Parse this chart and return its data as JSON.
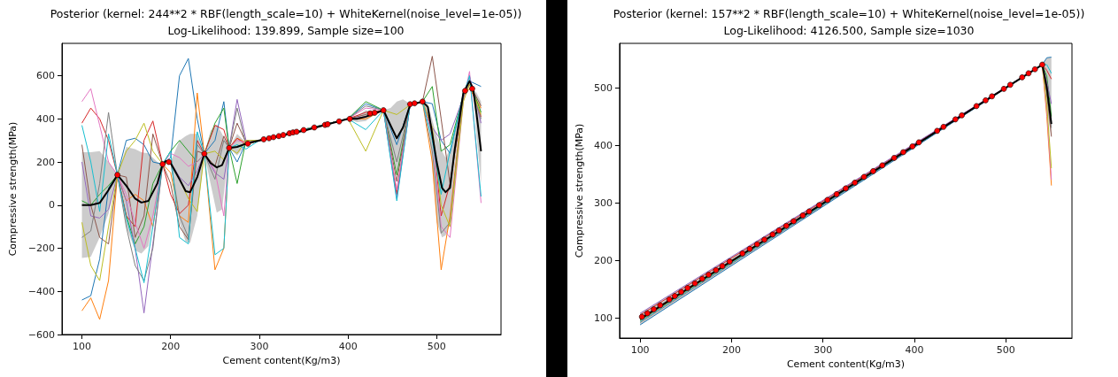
{
  "chart_data": [
    {
      "type": "line",
      "title": "Posterior (kernel: 244**2 * RBF(length_scale=10) + WhiteKernel(noise_level=1e-05))",
      "subtitle": "Log-Likelihood: 139.899, Sample size=100",
      "xlabel": "Cement content(Kg/m3)",
      "ylabel": "Compressive strength(MPa)",
      "xlim": [
        77.5,
        572.5
      ],
      "ylim": [
        -600,
        750
      ],
      "xticks": [
        100,
        200,
        300,
        400,
        500
      ],
      "yticks": [
        -600,
        -400,
        -200,
        0,
        200,
        400,
        600
      ],
      "grid": false,
      "series": [
        {
          "color": "#000000",
          "x": [
            100,
            110,
            120,
            130,
            140,
            150,
            160,
            167,
            175,
            185,
            191,
            195,
            200,
            210,
            217,
            222,
            230,
            238,
            245,
            252,
            258,
            266,
            275,
            285,
            300,
            350,
            400,
            410,
            420,
            430,
            440,
            448,
            455,
            462,
            470,
            477,
            484,
            490,
            500,
            506,
            510,
            515,
            520,
            530,
            537,
            541,
            545,
            550
          ],
          "values": [
            0,
            0,
            10,
            70,
            140,
            90,
            30,
            12,
            20,
            100,
            190,
            205,
            195,
            120,
            65,
            60,
            130,
            238,
            195,
            175,
            185,
            265,
            270,
            285,
            300,
            345,
            400,
            400,
            410,
            425,
            440,
            370,
            310,
            360,
            465,
            472,
            480,
            455,
            200,
            80,
            60,
            80,
            250,
            520,
            575,
            540,
            420,
            250
          ],
          "upper": [
            245,
            245,
            250,
            200,
            140,
            270,
            260,
            245,
            240,
            200,
            190,
            210,
            200,
            300,
            320,
            330,
            330,
            238,
            345,
            375,
            330,
            265,
            330,
            290,
            305,
            345,
            400,
            415,
            440,
            430,
            440,
            450,
            480,
            490,
            470,
            472,
            480,
            470,
            320,
            250,
            220,
            260,
            330,
            520,
            575,
            540,
            520,
            480
          ],
          "lower": [
            -245,
            -240,
            -150,
            -40,
            140,
            -100,
            -210,
            -225,
            -190,
            40,
            190,
            200,
            190,
            -80,
            -170,
            -175,
            -50,
            238,
            100,
            -35,
            -20,
            265,
            230,
            280,
            295,
            345,
            400,
            385,
            390,
            420,
            440,
            270,
            150,
            240,
            460,
            472,
            480,
            420,
            -80,
            -150,
            -140,
            -90,
            160,
            520,
            575,
            540,
            320,
            100
          ]
        },
        {
          "type": "line",
          "color": "#1f77b4",
          "x": [
            100,
            110,
            120,
            130,
            140,
            150,
            160,
            170,
            180,
            191,
            200,
            210,
            220,
            230,
            238,
            250,
            260,
            266,
            275,
            285,
            300,
            400,
            420,
            440,
            455,
            470,
            484,
            495,
            505,
            515,
            530,
            537,
            550
          ],
          "values": [
            -440,
            -420,
            -250,
            80,
            140,
            300,
            310,
            280,
            200,
            190,
            220,
            600,
            680,
            400,
            238,
            300,
            480,
            265,
            200,
            290,
            300,
            400,
            470,
            440,
            280,
            465,
            480,
            470,
            300,
            240,
            520,
            575,
            550
          ]
        },
        {
          "type": "line",
          "color": "#ff7f0e",
          "x": [
            100,
            110,
            120,
            130,
            140,
            150,
            160,
            170,
            180,
            191,
            200,
            210,
            220,
            230,
            238,
            250,
            260,
            266,
            275,
            285,
            300,
            400,
            420,
            440,
            455,
            470,
            484,
            495,
            505,
            515,
            530,
            537,
            550
          ],
          "values": [
            -490,
            -430,
            -530,
            -350,
            140,
            20,
            50,
            20,
            -100,
            190,
            150,
            -50,
            -80,
            520,
            238,
            -300,
            -200,
            265,
            310,
            290,
            300,
            400,
            400,
            440,
            60,
            465,
            480,
            200,
            -300,
            -50,
            510,
            540,
            450
          ]
        },
        {
          "type": "line",
          "color": "#2ca02c",
          "x": [
            100,
            110,
            120,
            130,
            140,
            150,
            160,
            170,
            180,
            191,
            200,
            210,
            220,
            230,
            238,
            250,
            260,
            266,
            275,
            285,
            300,
            400,
            420,
            440,
            455,
            470,
            484,
            495,
            505,
            515,
            530,
            537,
            550
          ],
          "values": [
            20,
            0,
            50,
            90,
            140,
            -50,
            -180,
            -100,
            100,
            190,
            250,
            300,
            250,
            200,
            238,
            380,
            450,
            265,
            100,
            300,
            300,
            400,
            480,
            440,
            140,
            465,
            480,
            550,
            250,
            280,
            510,
            575,
            430
          ]
        },
        {
          "type": "line",
          "color": "#d62728",
          "x": [
            100,
            110,
            120,
            130,
            140,
            150,
            160,
            170,
            180,
            191,
            200,
            210,
            220,
            230,
            238,
            250,
            260,
            266,
            275,
            285,
            300,
            400,
            420,
            440,
            455,
            470,
            484,
            495,
            505,
            515,
            530,
            537,
            550
          ],
          "values": [
            380,
            450,
            400,
            300,
            140,
            -50,
            -100,
            300,
            390,
            190,
            50,
            -40,
            0,
            300,
            238,
            370,
            350,
            265,
            310,
            280,
            300,
            400,
            430,
            440,
            50,
            465,
            480,
            350,
            -50,
            100,
            500,
            560,
            410
          ]
        },
        {
          "type": "line",
          "color": "#9467bd",
          "x": [
            100,
            110,
            120,
            130,
            140,
            150,
            160,
            170,
            180,
            191,
            200,
            210,
            220,
            230,
            238,
            250,
            260,
            266,
            275,
            285,
            300,
            400,
            420,
            440,
            455,
            470,
            484,
            495,
            505,
            515,
            530,
            537,
            550
          ],
          "values": [
            200,
            -50,
            -60,
            -20,
            140,
            20,
            -200,
            -500,
            -180,
            190,
            200,
            130,
            90,
            160,
            238,
            150,
            120,
            265,
            490,
            300,
            300,
            400,
            410,
            440,
            30,
            465,
            480,
            360,
            300,
            330,
            500,
            600,
            380
          ]
        },
        {
          "type": "line",
          "color": "#8c564b",
          "x": [
            100,
            110,
            120,
            130,
            140,
            150,
            160,
            170,
            180,
            191,
            200,
            210,
            220,
            230,
            238,
            250,
            260,
            266,
            275,
            285,
            300,
            400,
            420,
            440,
            455,
            470,
            484,
            495,
            505,
            515,
            530,
            537,
            550
          ],
          "values": [
            280,
            0,
            -150,
            -180,
            140,
            130,
            -150,
            -50,
            330,
            190,
            100,
            -100,
            -160,
            250,
            238,
            180,
            320,
            265,
            380,
            290,
            300,
            400,
            420,
            440,
            110,
            465,
            480,
            690,
            400,
            100,
            500,
            560,
            460
          ]
        },
        {
          "type": "line",
          "color": "#e377c2",
          "x": [
            100,
            110,
            120,
            130,
            140,
            150,
            160,
            170,
            180,
            191,
            200,
            210,
            220,
            230,
            238,
            250,
            260,
            266,
            275,
            285,
            300,
            400,
            420,
            440,
            455,
            470,
            484,
            495,
            505,
            515,
            530,
            537,
            550
          ],
          "values": [
            480,
            540,
            370,
            200,
            140,
            50,
            -80,
            -200,
            -50,
            190,
            240,
            220,
            180,
            200,
            238,
            160,
            -50,
            265,
            300,
            290,
            300,
            400,
            450,
            440,
            70,
            465,
            480,
            330,
            -100,
            -150,
            480,
            620,
            10
          ]
        },
        {
          "type": "line",
          "color": "#7f7f7f",
          "x": [
            100,
            110,
            120,
            130,
            140,
            150,
            160,
            170,
            180,
            191,
            200,
            210,
            220,
            230,
            238,
            250,
            260,
            266,
            275,
            285,
            300,
            400,
            420,
            440,
            455,
            470,
            484,
            495,
            505,
            515,
            530,
            537,
            550
          ],
          "values": [
            -150,
            -120,
            100,
            430,
            140,
            -100,
            -280,
            -350,
            -200,
            190,
            200,
            -50,
            -150,
            280,
            238,
            120,
            300,
            265,
            450,
            280,
            300,
            400,
            460,
            440,
            200,
            465,
            480,
            250,
            -130,
            -80,
            500,
            575,
            400
          ]
        },
        {
          "type": "line",
          "color": "#bcbd22",
          "x": [
            100,
            110,
            120,
            130,
            140,
            150,
            160,
            170,
            180,
            191,
            200,
            210,
            220,
            230,
            238,
            250,
            260,
            266,
            275,
            285,
            300,
            400,
            420,
            440,
            455,
            470,
            484,
            495,
            505,
            515,
            530,
            537,
            550
          ],
          "values": [
            -80,
            -280,
            -350,
            -100,
            140,
            250,
            300,
            380,
            250,
            190,
            200,
            120,
            30,
            -30,
            238,
            250,
            210,
            265,
            240,
            300,
            300,
            400,
            250,
            440,
            420,
            465,
            480,
            360,
            0,
            -100,
            480,
            560,
            420
          ]
        },
        {
          "type": "line",
          "color": "#17becf",
          "x": [
            100,
            110,
            120,
            130,
            140,
            150,
            160,
            170,
            180,
            191,
            200,
            210,
            220,
            230,
            238,
            250,
            260,
            266,
            275,
            285,
            300,
            400,
            420,
            440,
            455,
            470,
            484,
            495,
            505,
            515,
            530,
            537,
            550
          ],
          "values": [
            370,
            200,
            -30,
            330,
            140,
            -60,
            -200,
            -360,
            -100,
            190,
            250,
            -150,
            -180,
            340,
            238,
            -230,
            -200,
            265,
            280,
            260,
            300,
            400,
            350,
            440,
            20,
            465,
            480,
            300,
            50,
            250,
            510,
            600,
            40
          ]
        },
        {
          "type": "scatter",
          "color": "#ff0000",
          "x": [
            140,
            191,
            198,
            238,
            266,
            287,
            305,
            311,
            316,
            322,
            327,
            334,
            338,
            342,
            350,
            362,
            374,
            377,
            390,
            402,
            425,
            430,
            440,
            470,
            475,
            484,
            532,
            540
          ],
          "values": [
            140,
            190,
            200,
            238,
            265,
            285,
            305,
            310,
            315,
            320,
            325,
            333,
            337,
            340,
            348,
            360,
            372,
            375,
            388,
            400,
            425,
            428,
            440,
            468,
            472,
            480,
            530,
            540
          ]
        }
      ]
    },
    {
      "type": "line",
      "title": "Posterior (kernel: 157**2 * RBF(length_scale=10) + WhiteKernel(noise_level=1e-05))",
      "subtitle": "Log-Likelihood: 4126.500, Sample size=1030",
      "xlabel": "Cement content(Kg/m3)",
      "ylabel": "Compressive strength(MPa)",
      "xlim": [
        77.5,
        572.5
      ],
      "ylim": [
        65,
        577
      ],
      "xticks": [
        100,
        200,
        300,
        400,
        500
      ],
      "yticks": [
        100,
        200,
        300,
        400,
        500
      ],
      "grid": false,
      "series": [
        {
          "color": "#000000",
          "x": [
            100,
            540,
            545,
            550
          ],
          "values": [
            98,
            540,
            500,
            437
          ],
          "upper": [
            108,
            540,
            552,
            553
          ],
          "lower": [
            88,
            540,
            460,
            415
          ]
        },
        {
          "type": "line",
          "color": "#1f77b4",
          "x": [
            100,
            540,
            545,
            550
          ],
          "values": [
            88,
            540,
            552,
            553
          ]
        },
        {
          "type": "line",
          "color": "#ff7f0e",
          "x": [
            100,
            540,
            545,
            550
          ],
          "values": [
            95,
            540,
            450,
            330
          ]
        },
        {
          "type": "line",
          "color": "#2ca02c",
          "x": [
            100,
            540,
            545,
            550
          ],
          "values": [
            97,
            540,
            520,
            450
          ]
        },
        {
          "type": "line",
          "color": "#d62728",
          "x": [
            100,
            540,
            545,
            550
          ],
          "values": [
            105,
            540,
            530,
            515
          ]
        },
        {
          "type": "line",
          "color": "#9467bd",
          "x": [
            100,
            540,
            545,
            550
          ],
          "values": [
            108,
            540,
            510,
            472
          ]
        },
        {
          "type": "line",
          "color": "#8c564b",
          "x": [
            100,
            540,
            545,
            550
          ],
          "values": [
            100,
            540,
            490,
            415
          ]
        },
        {
          "type": "line",
          "color": "#e377c2",
          "x": [
            100,
            540,
            545,
            550
          ],
          "values": [
            98,
            540,
            460,
            340
          ]
        },
        {
          "type": "line",
          "color": "#7f7f7f",
          "x": [
            100,
            540,
            545,
            550
          ],
          "values": [
            92,
            540,
            495,
            430
          ]
        },
        {
          "type": "line",
          "color": "#bcbd22",
          "x": [
            100,
            540,
            545,
            550
          ],
          "values": [
            97,
            540,
            470,
            360
          ]
        },
        {
          "type": "line",
          "color": "#17becf",
          "x": [
            100,
            540,
            545,
            550
          ],
          "values": [
            94,
            540,
            540,
            525
          ]
        },
        {
          "type": "scatter",
          "color": "#ff0000",
          "x": [
            102,
            108,
            115,
            122,
            132,
            138,
            145,
            152,
            160,
            168,
            175,
            183,
            190,
            198,
            212,
            220,
            228,
            236,
            245,
            252,
            260,
            268,
            278,
            285,
            296,
            305,
            315,
            325,
            335,
            345,
            355,
            365,
            378,
            388,
            398,
            405,
            425,
            432,
            445,
            452,
            468,
            478,
            485,
            498,
            505,
            518,
            525,
            532,
            540
          ],
          "values": [
            102,
            108,
            115,
            122,
            132,
            138,
            145,
            152,
            160,
            168,
            175,
            183,
            190,
            198,
            212,
            220,
            228,
            236,
            245,
            252,
            260,
            268,
            278,
            285,
            296,
            305,
            315,
            325,
            335,
            345,
            355,
            365,
            378,
            388,
            398,
            405,
            425,
            432,
            445,
            452,
            468,
            478,
            485,
            498,
            505,
            518,
            525,
            532,
            540
          ]
        }
      ]
    }
  ]
}
